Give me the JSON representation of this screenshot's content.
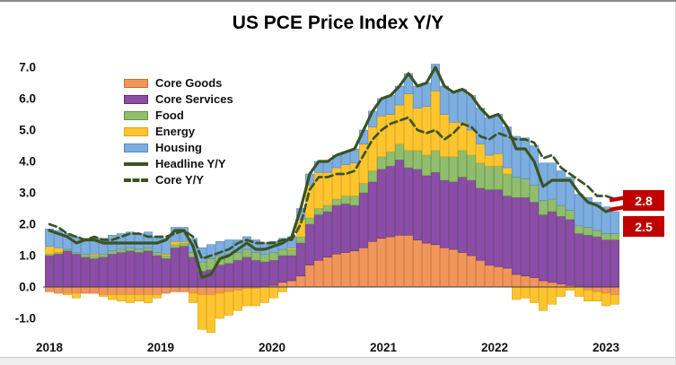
{
  "chart": {
    "title": "US PCE Price Index Y/Y",
    "annotations": {
      "core_latest": "2.8",
      "headline_latest": "2.5"
    }
  },
  "chart_data": {
    "type": "bar",
    "subtype": "stacked-bar-with-lines",
    "title": "US PCE Price Index Y/Y",
    "xlabel": "",
    "ylabel": "",
    "grid": false,
    "legend_position": "upper-left",
    "x_tick_labels": [
      "2018",
      "2019",
      "2020",
      "2021",
      "2022",
      "2023"
    ],
    "y_ticks": [
      7.0,
      6.0,
      5.0,
      4.0,
      3.0,
      2.0,
      1.0,
      0.0,
      -1.0
    ],
    "ylim": [
      -1.4,
      7.4
    ],
    "n_points": 64,
    "frequency": "monthly",
    "series": [
      {
        "name": "Core Goods",
        "type": "bar",
        "color": "#F0965C",
        "border": "#C9702A",
        "values": [
          -0.15,
          -0.2,
          -0.2,
          -0.2,
          -0.2,
          -0.2,
          -0.25,
          -0.25,
          -0.25,
          -0.25,
          -0.25,
          -0.25,
          -0.25,
          -0.2,
          -0.15,
          -0.15,
          -0.2,
          -0.25,
          -0.25,
          -0.2,
          -0.15,
          -0.1,
          -0.05,
          -0.05,
          0.0,
          0.05,
          0.15,
          0.2,
          0.35,
          0.7,
          0.85,
          0.95,
          1.05,
          1.1,
          1.15,
          1.25,
          1.45,
          1.55,
          1.6,
          1.65,
          1.65,
          1.5,
          1.4,
          1.35,
          1.25,
          1.2,
          1.1,
          1.0,
          0.85,
          0.7,
          0.65,
          0.6,
          0.4,
          0.35,
          0.3,
          0.2,
          0.15,
          0.1,
          0.05,
          0.0,
          -0.1,
          -0.15,
          -0.2,
          -0.25
        ]
      },
      {
        "name": "Core Services",
        "type": "bar",
        "color": "#8B4DA8",
        "border": "#5E3375",
        "values": [
          1.0,
          1.05,
          1.15,
          1.05,
          0.95,
          0.9,
          0.95,
          1.05,
          1.1,
          1.15,
          1.1,
          1.15,
          1.0,
          0.9,
          1.25,
          1.3,
          0.95,
          0.5,
          0.55,
          0.7,
          0.75,
          0.85,
          0.95,
          0.85,
          0.8,
          0.8,
          0.85,
          0.8,
          1.05,
          1.3,
          1.45,
          1.45,
          1.55,
          1.55,
          1.45,
          1.75,
          1.9,
          2.2,
          2.25,
          2.4,
          2.15,
          2.25,
          2.15,
          2.3,
          2.15,
          2.15,
          2.4,
          2.4,
          2.3,
          2.4,
          2.45,
          2.3,
          2.45,
          2.5,
          2.4,
          2.1,
          2.25,
          2.15,
          2.1,
          1.7,
          1.65,
          1.6,
          1.5,
          1.5
        ]
      },
      {
        "name": "Food",
        "type": "bar",
        "color": "#90BE6E",
        "border": "#64923F",
        "values": [
          0.05,
          0.05,
          0.05,
          0.05,
          0.1,
          0.1,
          0.1,
          0.1,
          0.1,
          0.1,
          0.1,
          0.1,
          0.1,
          0.1,
          0.1,
          0.1,
          0.15,
          0.3,
          0.35,
          0.3,
          0.3,
          0.25,
          0.25,
          0.25,
          0.25,
          0.25,
          0.2,
          0.2,
          0.2,
          0.2,
          0.2,
          0.2,
          0.2,
          0.25,
          0.3,
          0.3,
          0.35,
          0.4,
          0.45,
          0.5,
          0.55,
          0.6,
          0.65,
          0.7,
          0.75,
          0.8,
          0.85,
          0.8,
          0.8,
          0.75,
          0.75,
          0.7,
          0.65,
          0.6,
          0.55,
          0.45,
          0.4,
          0.35,
          0.3,
          0.25,
          0.25,
          0.2,
          0.2,
          0.2
        ]
      },
      {
        "name": "Energy",
        "type": "bar",
        "color": "#FFC52F",
        "border": "#D9A410",
        "values": [
          0.25,
          0.15,
          -0.05,
          -0.15,
          0.0,
          0.05,
          -0.05,
          -0.15,
          -0.2,
          -0.25,
          -0.2,
          -0.25,
          -0.1,
          0.05,
          0.1,
          0.05,
          -0.3,
          -1.1,
          -1.2,
          -0.8,
          -0.75,
          -0.65,
          -0.55,
          -0.55,
          -0.5,
          -0.35,
          -0.15,
          0.05,
          0.55,
          1.05,
          1.15,
          1.05,
          1.0,
          1.0,
          1.05,
          1.25,
          1.4,
          1.3,
          1.2,
          1.25,
          1.8,
          1.35,
          1.55,
          1.9,
          1.35,
          1.1,
          0.9,
          0.8,
          0.6,
          0.35,
          0.4,
          0.2,
          -0.4,
          -0.35,
          -0.5,
          -0.75,
          -0.55,
          -0.3,
          -0.1,
          -0.3,
          -0.35,
          -0.3,
          -0.4,
          -0.3
        ]
      },
      {
        "name": "Housing",
        "type": "bar",
        "color": "#7DAEE0",
        "border": "#5585C0",
        "values": [
          0.55,
          0.55,
          0.5,
          0.5,
          0.5,
          0.5,
          0.5,
          0.5,
          0.5,
          0.5,
          0.5,
          0.5,
          0.5,
          0.5,
          0.45,
          0.45,
          0.45,
          0.45,
          0.45,
          0.45,
          0.45,
          0.4,
          0.4,
          0.4,
          0.35,
          0.35,
          0.35,
          0.35,
          0.35,
          0.35,
          0.35,
          0.35,
          0.4,
          0.4,
          0.45,
          0.45,
          0.5,
          0.55,
          0.6,
          0.6,
          0.65,
          0.7,
          0.75,
          0.85,
          0.9,
          0.95,
          1.05,
          1.1,
          1.15,
          1.2,
          1.25,
          1.3,
          1.3,
          1.3,
          1.25,
          1.2,
          1.15,
          1.1,
          1.05,
          1.0,
          0.95,
          0.9,
          0.85,
          0.7
        ]
      },
      {
        "name": "Headline Y/Y",
        "type": "line",
        "color": "#3A5323",
        "values": [
          1.8,
          1.7,
          1.6,
          1.4,
          1.5,
          1.5,
          1.4,
          1.4,
          1.4,
          1.4,
          1.4,
          1.4,
          1.4,
          1.5,
          1.8,
          1.8,
          1.3,
          0.3,
          0.4,
          0.9,
          1.0,
          1.2,
          1.4,
          1.2,
          1.2,
          1.3,
          1.4,
          1.6,
          2.5,
          3.6,
          4.0,
          4.0,
          4.2,
          4.3,
          4.4,
          5.0,
          5.6,
          6.0,
          6.1,
          6.4,
          6.8,
          6.4,
          6.5,
          7.0,
          6.4,
          6.2,
          6.3,
          6.1,
          5.7,
          5.4,
          5.5,
          5.1,
          4.4,
          4.4,
          4.0,
          3.2,
          3.4,
          3.4,
          3.4,
          3.0,
          2.7,
          2.6,
          2.4,
          2.5
        ]
      },
      {
        "name": "Core Y/Y",
        "type": "dashed-line",
        "color": "#3A5323",
        "values": [
          2.0,
          1.9,
          1.7,
          1.6,
          1.5,
          1.6,
          1.5,
          1.5,
          1.6,
          1.7,
          1.7,
          1.6,
          1.6,
          1.6,
          1.7,
          1.8,
          1.6,
          0.9,
          1.0,
          1.1,
          1.2,
          1.4,
          1.5,
          1.4,
          1.4,
          1.4,
          1.5,
          1.5,
          2.0,
          3.1,
          3.5,
          3.5,
          3.6,
          3.6,
          3.7,
          4.2,
          4.7,
          5.0,
          5.2,
          5.3,
          5.4,
          5.0,
          4.9,
          5.0,
          4.7,
          4.9,
          5.2,
          5.1,
          4.8,
          4.7,
          4.9,
          4.8,
          4.7,
          4.7,
          4.6,
          4.1,
          4.2,
          3.8,
          3.6,
          3.4,
          3.2,
          2.9,
          2.9,
          2.8
        ]
      }
    ],
    "end_markers": {
      "color": "#C00000",
      "core_value": 2.8,
      "headline_value": 2.5
    },
    "annotations": [
      {
        "text": "2.8",
        "refers_to": "Core Y/Y latest",
        "bg": "#C00000",
        "fg": "#FFFFFF"
      },
      {
        "text": "2.5",
        "refers_to": "Headline Y/Y latest",
        "bg": "#C00000",
        "fg": "#FFFFFF"
      }
    ]
  }
}
